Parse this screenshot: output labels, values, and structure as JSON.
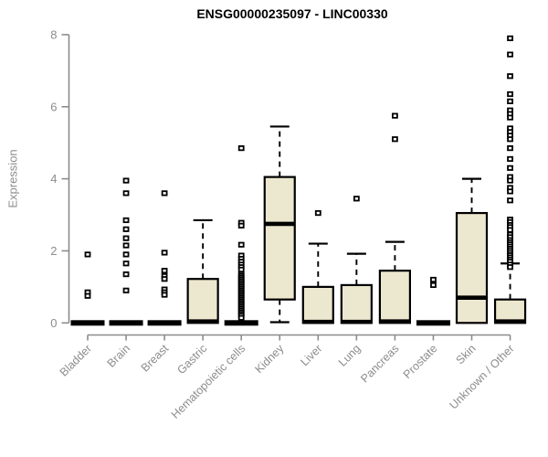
{
  "chart_data": {
    "type": "boxplot",
    "title": "ENSG00000235097 - LINC00330",
    "ylabel": "Expression",
    "xlabel": "",
    "ylim": [
      0,
      8
    ],
    "yticks": [
      0,
      2,
      4,
      6,
      8
    ],
    "grid": false,
    "legend": "none",
    "colors": {
      "box_fill": "#ece7cf",
      "box_stroke": "#000000",
      "median": "#000000",
      "whisker": "#000000",
      "axis": "#8c8c8c",
      "tick_label": "#8c8c8c",
      "title": "#000000",
      "outlier_fill": "#ffffff",
      "outlier_stroke": "#000000"
    },
    "categories": [
      "Bladder",
      "Brain",
      "Breast",
      "Gastric",
      "Hematopoietic cells",
      "Kidney",
      "Liver",
      "Lung",
      "Pancreas",
      "Prostate",
      "Skin",
      "Unknown / Other"
    ],
    "series": [
      {
        "name": "Bladder",
        "whisker_low": 0,
        "q1": 0,
        "median": 0,
        "q3": 0,
        "whisker_high": 0,
        "outliers": [
          1.9,
          0.85,
          0.75
        ]
      },
      {
        "name": "Brain",
        "whisker_low": 0,
        "q1": 0,
        "median": 0,
        "q3": 0,
        "whisker_high": 0,
        "outliers": [
          3.95,
          3.6,
          2.85,
          2.6,
          2.35,
          2.15,
          1.9,
          1.65,
          1.35,
          0.9
        ]
      },
      {
        "name": "Breast",
        "whisker_low": 0,
        "q1": 0,
        "median": 0,
        "q3": 0,
        "whisker_high": 0,
        "outliers": [
          3.6,
          1.95,
          1.45,
          1.3,
          1.22,
          0.93,
          0.85,
          0.78
        ]
      },
      {
        "name": "Gastric",
        "whisker_low": 0,
        "q1": 0,
        "median": 0.04,
        "q3": 1.22,
        "whisker_high": 2.85,
        "outliers": []
      },
      {
        "name": "Hematopoietic cells",
        "whisker_low": 0,
        "q1": 0,
        "median": 0,
        "q3": 0,
        "whisker_high": 0,
        "outliers": [
          4.85,
          2.78,
          2.7,
          2.17,
          1.87,
          1.78,
          1.7,
          1.62,
          1.55,
          1.48,
          1.35,
          1.3,
          1.25,
          1.2,
          1.15,
          1.1,
          1.05,
          1.0,
          0.95,
          0.9,
          0.85,
          0.8,
          0.75,
          0.7,
          0.65,
          0.6,
          0.55,
          0.5,
          0.45,
          0.4,
          0.35,
          0.3,
          0.25,
          0.2,
          0.14
        ]
      },
      {
        "name": "Kidney",
        "whisker_low": 0.02,
        "q1": 0.65,
        "median": 2.75,
        "q3": 4.05,
        "whisker_high": 5.45,
        "outliers": []
      },
      {
        "name": "Liver",
        "whisker_low": 0,
        "q1": 0,
        "median": 0.03,
        "q3": 1.0,
        "whisker_high": 2.2,
        "outliers": [
          3.05
        ]
      },
      {
        "name": "Lung",
        "whisker_low": 0,
        "q1": 0,
        "median": 0.03,
        "q3": 1.05,
        "whisker_high": 1.92,
        "outliers": [
          3.45
        ]
      },
      {
        "name": "Pancreas",
        "whisker_low": 0,
        "q1": 0,
        "median": 0.04,
        "q3": 1.45,
        "whisker_high": 2.25,
        "outliers": [
          5.75,
          5.1
        ]
      },
      {
        "name": "Prostate",
        "whisker_low": 0,
        "q1": 0,
        "median": 0,
        "q3": 0,
        "whisker_high": 0,
        "outliers": [
          1.2,
          1.05
        ]
      },
      {
        "name": "Skin",
        "whisker_low": 0,
        "q1": 0,
        "median": 0.7,
        "q3": 3.05,
        "whisker_high": 4.0,
        "outliers": []
      },
      {
        "name": "Unknown / Other",
        "whisker_low": 0,
        "q1": 0,
        "median": 0.04,
        "q3": 0.65,
        "whisker_high": 1.65,
        "outliers": [
          7.9,
          7.45,
          6.85,
          6.35,
          6.15,
          5.9,
          5.8,
          5.7,
          5.4,
          5.3,
          5.2,
          5.1,
          4.85,
          4.55,
          4.3,
          4.05,
          3.95,
          3.75,
          3.65,
          3.4,
          2.87,
          2.8,
          2.72,
          2.66,
          2.58,
          2.45,
          2.38,
          2.3,
          2.24,
          2.18,
          2.12,
          2.06,
          2.0,
          1.94,
          1.88,
          1.82,
          1.76,
          1.7,
          1.62,
          1.55
        ]
      }
    ]
  }
}
